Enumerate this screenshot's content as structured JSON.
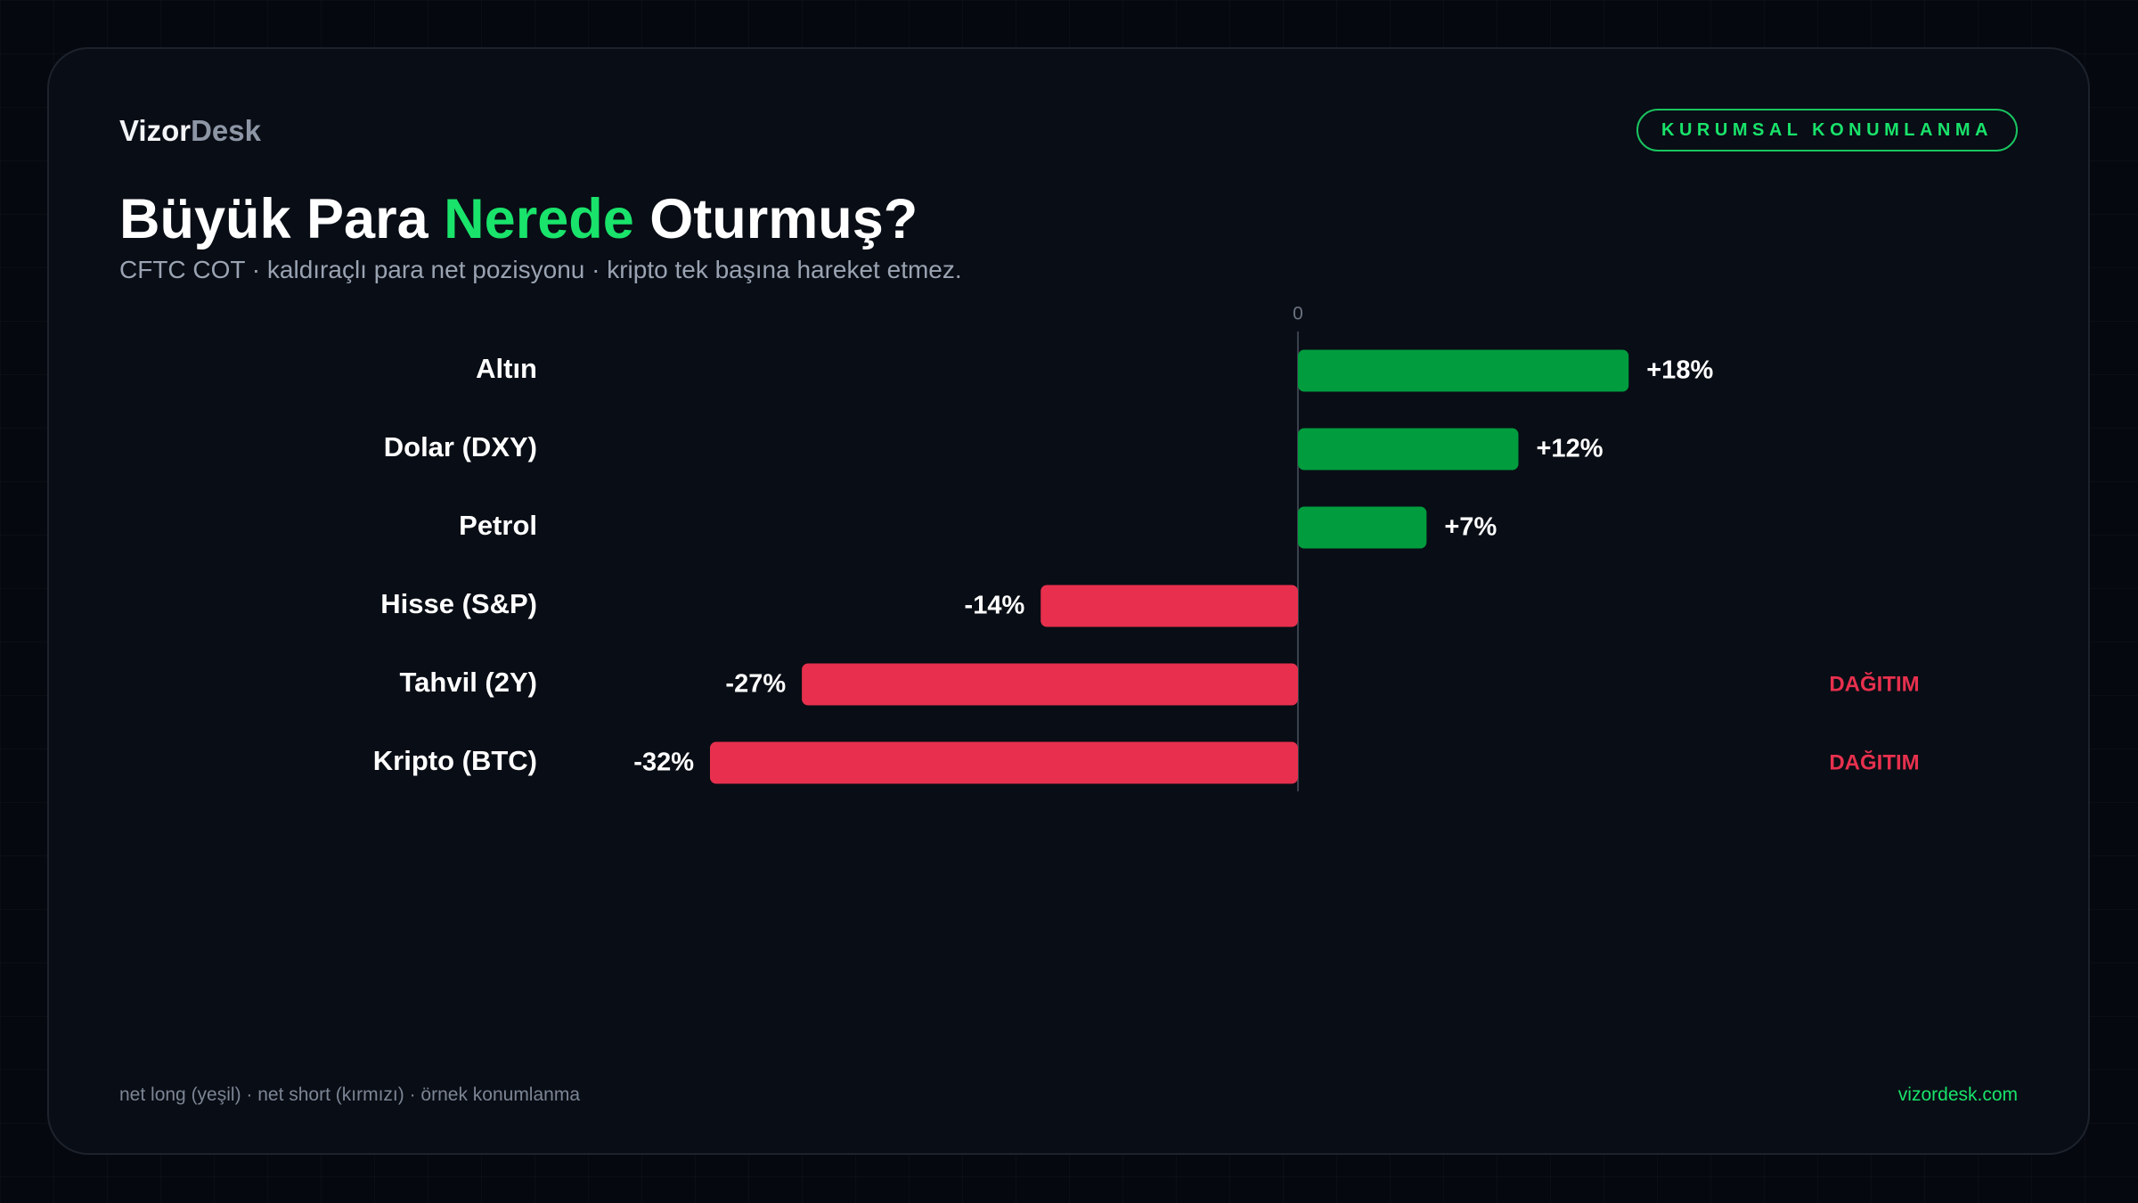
{
  "header": {
    "brand": [
      "Vizor",
      "Desk"
    ],
    "badge": "KURUMSAL KONUMLANMA",
    "title": [
      "Büyük Para ",
      "Nerede",
      " Oturmuş?"
    ],
    "subtitle": "CFTC COT · kaldıraçlı para net pozisyonu · kripto tek başına hareket etmez."
  },
  "chart_data": {
    "type": "hbar",
    "categories": [
      "Altın",
      "Dolar (DXY)",
      "Petrol",
      "Hisse (S&P)",
      "Tahvil (2Y)",
      "Kripto (BTC)"
    ],
    "values": [
      18,
      12,
      7,
      -14,
      -27,
      -32
    ],
    "value_labels": [
      "+18%",
      "+12%",
      "+7%",
      "-14%",
      "-27%",
      "-32%"
    ],
    "annotations": [
      null,
      null,
      null,
      null,
      "DAĞITIM",
      "DAĞITIM"
    ],
    "positive_color": "#009c3e",
    "negative_color": "#e8304e",
    "annotation_color": "#e8304e",
    "xticks": [
      0
    ]
  },
  "footer": {
    "note": "net long (yeşil) · net short (kırmızı) · örnek konumlanma",
    "site": "vizordesk.com"
  }
}
